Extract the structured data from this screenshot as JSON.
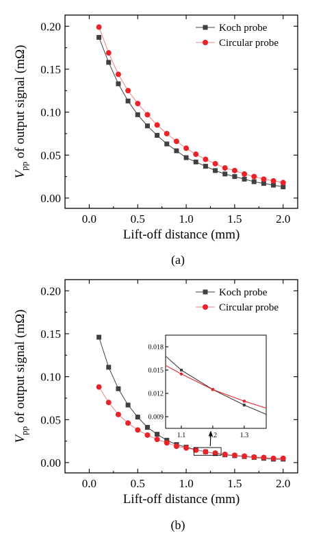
{
  "colors": {
    "koch": "#404040",
    "circular": "#e8232a",
    "circular_line": "#f08080"
  },
  "chart_data": [
    {
      "type": "line",
      "panel_label": "(a)",
      "xlabel": "Lift-off distance (mm)",
      "ylabel_main": "V",
      "ylabel_sub": "pp",
      "ylabel_rest": " of output signal (mΩ)",
      "xlim": [
        -0.25,
        2.15
      ],
      "ylim": [
        -0.012,
        0.213
      ],
      "xticks": [
        0.0,
        0.5,
        1.0,
        1.5,
        2.0
      ],
      "xtick_labels": [
        "0.0",
        "0.5",
        "1.0",
        "1.5",
        "2.0"
      ],
      "yticks": [
        0.0,
        0.05,
        0.1,
        0.15,
        0.2
      ],
      "ytick_labels": [
        "0.00",
        "0.05",
        "0.10",
        "0.15",
        "0.20"
      ],
      "legend_position": "top-right",
      "x": [
        0.1,
        0.2,
        0.3,
        0.4,
        0.5,
        0.6,
        0.7,
        0.8,
        0.9,
        1.0,
        1.1,
        1.2,
        1.3,
        1.4,
        1.5,
        1.6,
        1.7,
        1.8,
        1.9,
        2.0
      ],
      "series": [
        {
          "name": "Koch probe",
          "marker": "square",
          "colorKey": "koch",
          "values": [
            0.187,
            0.158,
            0.133,
            0.113,
            0.097,
            0.084,
            0.073,
            0.063,
            0.055,
            0.047,
            0.042,
            0.037,
            0.032,
            0.028,
            0.025,
            0.022,
            0.019,
            0.017,
            0.015,
            0.013
          ]
        },
        {
          "name": "Circular probe",
          "marker": "circle",
          "colorKey": "circular",
          "values": [
            0.199,
            0.169,
            0.144,
            0.125,
            0.11,
            0.097,
            0.085,
            0.075,
            0.066,
            0.058,
            0.051,
            0.045,
            0.04,
            0.035,
            0.032,
            0.028,
            0.025,
            0.022,
            0.02,
            0.018
          ]
        }
      ]
    },
    {
      "type": "line",
      "panel_label": "(b)",
      "xlabel": "Lift-off distance (mm)",
      "ylabel_main": "V",
      "ylabel_sub": "pp",
      "ylabel_rest": " of output signal (mΩ)",
      "xlim": [
        -0.25,
        2.15
      ],
      "ylim": [
        -0.012,
        0.213
      ],
      "xticks": [
        0.0,
        0.5,
        1.0,
        1.5,
        2.0
      ],
      "xtick_labels": [
        "0.0",
        "0.5",
        "1.0",
        "1.5",
        "2.0"
      ],
      "yticks": [
        0.0,
        0.05,
        0.1,
        0.15,
        0.2
      ],
      "ytick_labels": [
        "0.00",
        "0.05",
        "0.10",
        "0.15",
        "0.20"
      ],
      "legend_position": "top-right",
      "x": [
        0.1,
        0.2,
        0.3,
        0.4,
        0.5,
        0.6,
        0.7,
        0.8,
        0.9,
        1.0,
        1.1,
        1.2,
        1.3,
        1.4,
        1.5,
        1.6,
        1.7,
        1.8,
        1.9,
        2.0
      ],
      "series": [
        {
          "name": "Koch probe",
          "marker": "square",
          "colorKey": "koch",
          "values": [
            0.146,
            0.111,
            0.086,
            0.067,
            0.053,
            0.041,
            0.033,
            0.026,
            0.021,
            0.018,
            0.015,
            0.0125,
            0.0105,
            0.009,
            0.008,
            0.007,
            0.006,
            0.005,
            0.004,
            0.004
          ]
        },
        {
          "name": "Circular probe",
          "marker": "circle",
          "colorKey": "circular",
          "values": [
            0.088,
            0.07,
            0.056,
            0.046,
            0.038,
            0.032,
            0.027,
            0.023,
            0.019,
            0.017,
            0.0145,
            0.0125,
            0.011,
            0.0095,
            0.0085,
            0.0075,
            0.0065,
            0.006,
            0.005,
            0.005
          ]
        }
      ],
      "zoom_box": {
        "x": [
          1.08,
          1.36
        ],
        "y": [
          0.0085,
          0.0175
        ]
      },
      "inset": {
        "xlim": [
          1.05,
          1.37
        ],
        "ylim": [
          0.0075,
          0.0195
        ],
        "xticks": [
          1.1,
          1.2,
          1.3
        ],
        "xtick_labels": [
          "1.1",
          "1.2",
          "1.3"
        ],
        "yticks": [
          0.009,
          0.012,
          0.015,
          0.018
        ],
        "ytick_labels": [
          "0.009",
          "0.012",
          "0.015",
          "0.018"
        ],
        "x": [
          1.1,
          1.2,
          1.3
        ],
        "line_x": [
          1.05,
          1.1,
          1.2,
          1.3,
          1.37
        ],
        "series": [
          {
            "name": "Koch probe",
            "colorKey": "koch",
            "values": [
              0.015,
              0.0125,
              0.0105
            ],
            "line_values": [
              0.0168,
              0.015,
              0.0125,
              0.0105,
              0.0093
            ]
          },
          {
            "name": "Circular probe",
            "colorKey": "circular",
            "values": [
              0.0145,
              0.0125,
              0.011
            ],
            "line_values": [
              0.0156,
              0.0145,
              0.0125,
              0.011,
              0.0101
            ]
          }
        ]
      }
    }
  ]
}
